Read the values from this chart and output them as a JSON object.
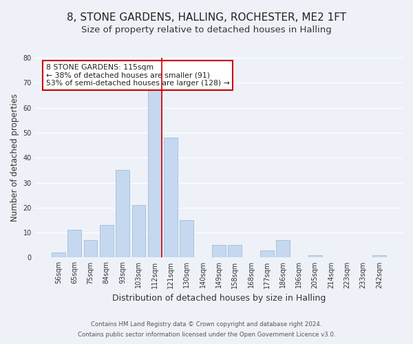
{
  "title": "8, STONE GARDENS, HALLING, ROCHESTER, ME2 1FT",
  "subtitle": "Size of property relative to detached houses in Halling",
  "xlabel": "Distribution of detached houses by size in Halling",
  "ylabel": "Number of detached properties",
  "bar_color": "#c5d8f0",
  "bar_edge_color": "#a0bcd8",
  "categories": [
    "56sqm",
    "65sqm",
    "75sqm",
    "84sqm",
    "93sqm",
    "103sqm",
    "112sqm",
    "121sqm",
    "130sqm",
    "140sqm",
    "149sqm",
    "158sqm",
    "168sqm",
    "177sqm",
    "186sqm",
    "196sqm",
    "205sqm",
    "214sqm",
    "223sqm",
    "233sqm",
    "242sqm"
  ],
  "values": [
    2,
    11,
    7,
    13,
    35,
    21,
    67,
    48,
    15,
    0,
    5,
    5,
    0,
    3,
    7,
    0,
    1,
    0,
    0,
    0,
    1
  ],
  "annotation_text": "8 STONE GARDENS: 115sqm\n← 38% of detached houses are smaller (91)\n53% of semi-detached houses are larger (128) →",
  "annotation_box_color": "#ffffff",
  "annotation_box_edge": "#cc0000",
  "ylim": [
    0,
    80
  ],
  "yticks": [
    0,
    10,
    20,
    30,
    40,
    50,
    60,
    70,
    80
  ],
  "footer1": "Contains HM Land Registry data © Crown copyright and database right 2024.",
  "footer2": "Contains public sector information licensed under the Open Government Licence v3.0.",
  "background_color": "#eef2f8",
  "grid_color": "#ffffff",
  "title_fontsize": 11,
  "subtitle_fontsize": 9.5,
  "tick_fontsize": 7,
  "ylabel_fontsize": 8.5,
  "xlabel_fontsize": 9,
  "red_line_xval": 6.42,
  "annotation_fontsize": 7.8
}
